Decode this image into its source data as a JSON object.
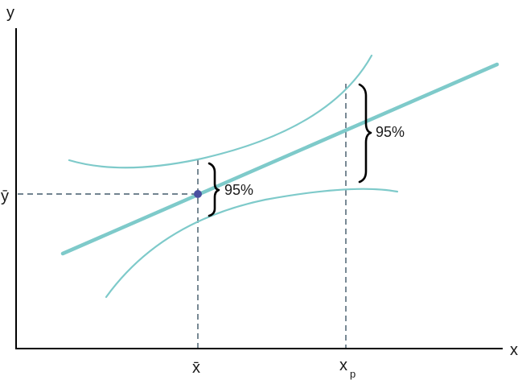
{
  "diagram": {
    "axes": {
      "x_label": "x",
      "y_label": "y"
    },
    "ticks": {
      "y_mean": "ȳ",
      "x_mean": "x̄",
      "x_p_base": "x",
      "x_p_sub": "p"
    },
    "intervals": {
      "at_mean_label": "95%",
      "at_xp_label": "95%"
    },
    "colors": {
      "regression_line": "#7ecaca",
      "confidence_band": "#7ecaca",
      "mean_point": "#4a4fa0",
      "axis": "#000000",
      "guide": "#1f3b4d"
    }
  }
}
